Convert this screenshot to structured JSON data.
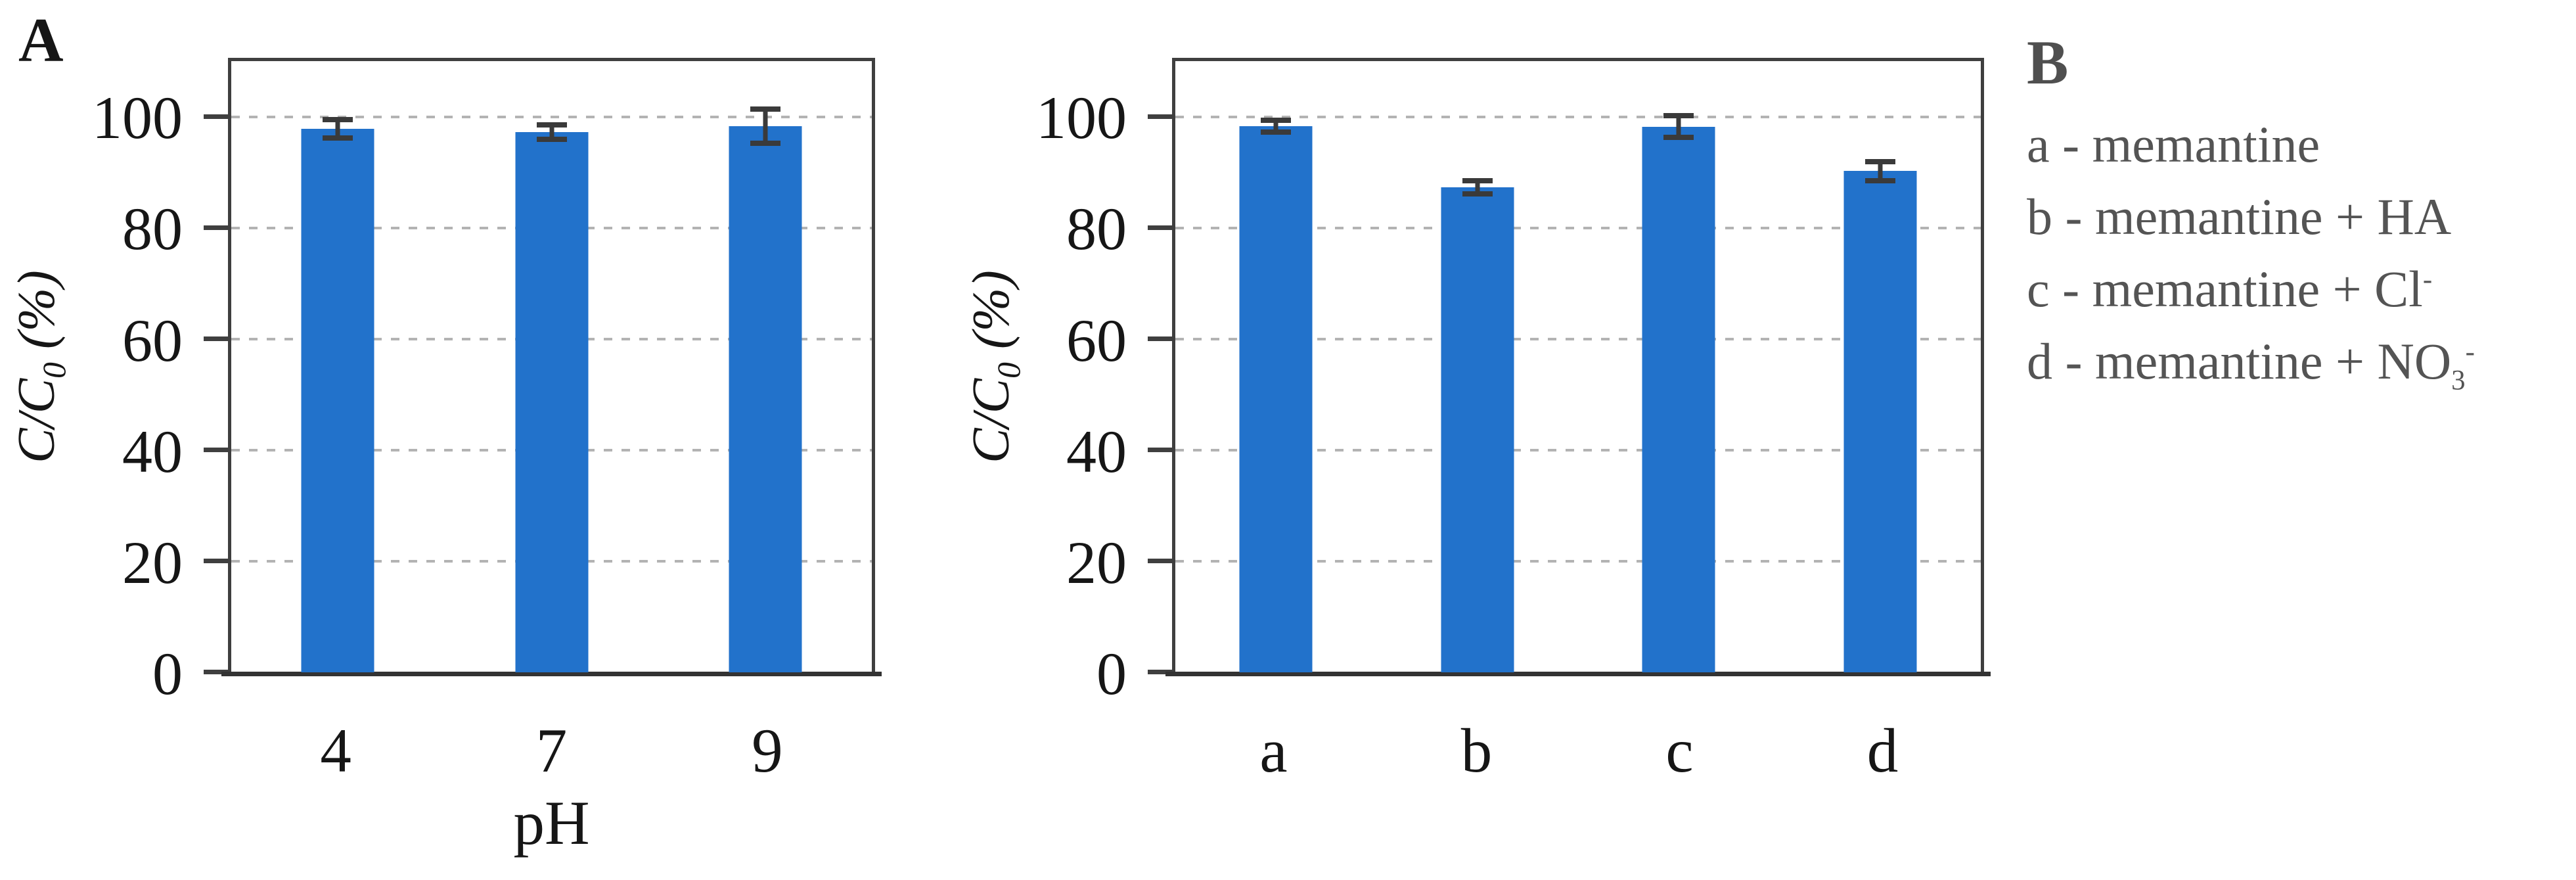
{
  "panels": {
    "a": {
      "label": "A",
      "ylabel_pre": "C/C",
      "ylabel_sub": "0",
      "ylabel_post": " (%)",
      "xlabel": "pH"
    },
    "b": {
      "label": "B",
      "ylabel_pre": "C/C",
      "ylabel_sub": "0",
      "ylabel_post": " (%)"
    }
  },
  "legend": {
    "label": "B",
    "text_color": "#4f4f4f",
    "items": [
      {
        "segments": [
          {
            "text": "a - memantine"
          }
        ]
      },
      {
        "segments": [
          {
            "text": "b - memantine + HA"
          }
        ]
      },
      {
        "segments": [
          {
            "text": "c - memantine + Cl"
          },
          {
            "sup": "-"
          }
        ]
      },
      {
        "segments": [
          {
            "text": "d - memantine + NO"
          },
          {
            "sub": "3"
          },
          {
            "sup": "-"
          }
        ]
      }
    ]
  },
  "chart_data": [
    {
      "id": "A",
      "type": "bar",
      "title": "",
      "categories": [
        "4",
        "7",
        "9"
      ],
      "values": [
        97.8,
        97.2,
        98.3
      ],
      "errors": [
        2.1,
        1.8,
        3.6
      ],
      "xlabel": "pH",
      "ylabel": "C/C0 (%)",
      "yticks": [
        0,
        20,
        40,
        60,
        80,
        100
      ],
      "ylim": [
        0,
        110
      ],
      "grid": "horizontal-dashed",
      "legend_position": "none",
      "bar_color": "#2272CB",
      "error_color": "#3a3a3a",
      "gridline_color": "#b3b3b3",
      "axis_color": "#3f3f3f"
    },
    {
      "id": "B",
      "type": "bar",
      "title": "",
      "categories": [
        "a",
        "b",
        "c",
        "d"
      ],
      "values": [
        98.3,
        87.3,
        98.2,
        90.2
      ],
      "errors": [
        1.5,
        1.7,
        2.4,
        2.2
      ],
      "xlabel": "",
      "ylabel": "C/C0 (%)",
      "yticks": [
        0,
        20,
        40,
        60,
        80,
        100
      ],
      "ylim": [
        0,
        110
      ],
      "grid": "horizontal-dashed",
      "legend_position": "right",
      "bar_color": "#2272CB",
      "error_color": "#3a3a3a",
      "gridline_color": "#b3b3b3",
      "axis_color": "#3f3f3f"
    }
  ]
}
